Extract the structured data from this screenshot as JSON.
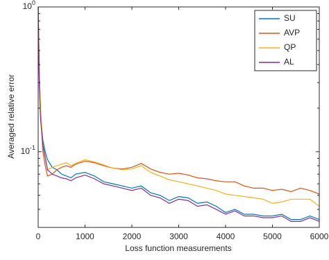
{
  "chart_data": {
    "type": "line",
    "x_label": "Loss function measurements",
    "y_label": "Averaged relative error",
    "log_y": true,
    "legend": "upper right",
    "x": [
      0,
      25,
      50,
      100,
      150,
      200,
      300,
      400,
      500,
      600,
      700,
      800,
      1000,
      1200,
      1400,
      1600,
      1800,
      2000,
      2200,
      2400,
      2600,
      2800,
      3000,
      3200,
      3400,
      3600,
      3800,
      4000,
      4200,
      4400,
      4600,
      4800,
      5000,
      5200,
      5400,
      5600,
      5800,
      6000
    ],
    "series": [
      {
        "name": "SU",
        "color": "#0072BD",
        "values": [
          1,
          0.3,
          0.18,
          0.12,
          0.1,
          0.088,
          0.078,
          0.075,
          0.07,
          0.068,
          0.066,
          0.07,
          0.072,
          0.068,
          0.062,
          0.06,
          0.058,
          0.056,
          0.058,
          0.052,
          0.05,
          0.046,
          0.049,
          0.048,
          0.044,
          0.045,
          0.042,
          0.038,
          0.04,
          0.037,
          0.037,
          0.036,
          0.036,
          0.037,
          0.034,
          0.034,
          0.036,
          0.034
        ]
      },
      {
        "name": "AVP",
        "color": "#D95319",
        "values": [
          1,
          0.35,
          0.2,
          0.1,
          0.08,
          0.068,
          0.07,
          0.075,
          0.078,
          0.08,
          0.078,
          0.082,
          0.086,
          0.084,
          0.08,
          0.077,
          0.076,
          0.078,
          0.083,
          0.076,
          0.072,
          0.07,
          0.071,
          0.069,
          0.066,
          0.065,
          0.063,
          0.062,
          0.062,
          0.058,
          0.056,
          0.056,
          0.054,
          0.055,
          0.053,
          0.056,
          0.054,
          0.051
        ]
      },
      {
        "name": "QP",
        "color": "#EDB120",
        "values": [
          1,
          0.35,
          0.2,
          0.11,
          0.09,
          0.075,
          0.078,
          0.08,
          0.082,
          0.084,
          0.08,
          0.083,
          0.088,
          0.085,
          0.081,
          0.077,
          0.075,
          0.076,
          0.08,
          0.072,
          0.068,
          0.064,
          0.062,
          0.06,
          0.058,
          0.056,
          0.054,
          0.051,
          0.05,
          0.049,
          0.048,
          0.047,
          0.044,
          0.045,
          0.047,
          0.047,
          0.047,
          0.042
        ]
      },
      {
        "name": "AL",
        "color": "#7E2F8E",
        "values": [
          1,
          0.28,
          0.17,
          0.11,
          0.092,
          0.075,
          0.07,
          0.068,
          0.066,
          0.065,
          0.063,
          0.066,
          0.069,
          0.065,
          0.06,
          0.058,
          0.056,
          0.054,
          0.056,
          0.05,
          0.048,
          0.044,
          0.047,
          0.046,
          0.042,
          0.043,
          0.04,
          0.037,
          0.039,
          0.036,
          0.036,
          0.035,
          0.035,
          0.036,
          0.033,
          0.033,
          0.035,
          0.033
        ]
      }
    ],
    "xlim": [
      0,
      6000
    ],
    "xticks": [
      0,
      1000,
      2000,
      3000,
      4000,
      5000,
      6000
    ],
    "ylim": [
      0.03,
      1
    ],
    "yticks": [
      {
        "value": 1,
        "label": "10^0"
      },
      {
        "value": 0.1,
        "label": "10^-1"
      }
    ]
  }
}
